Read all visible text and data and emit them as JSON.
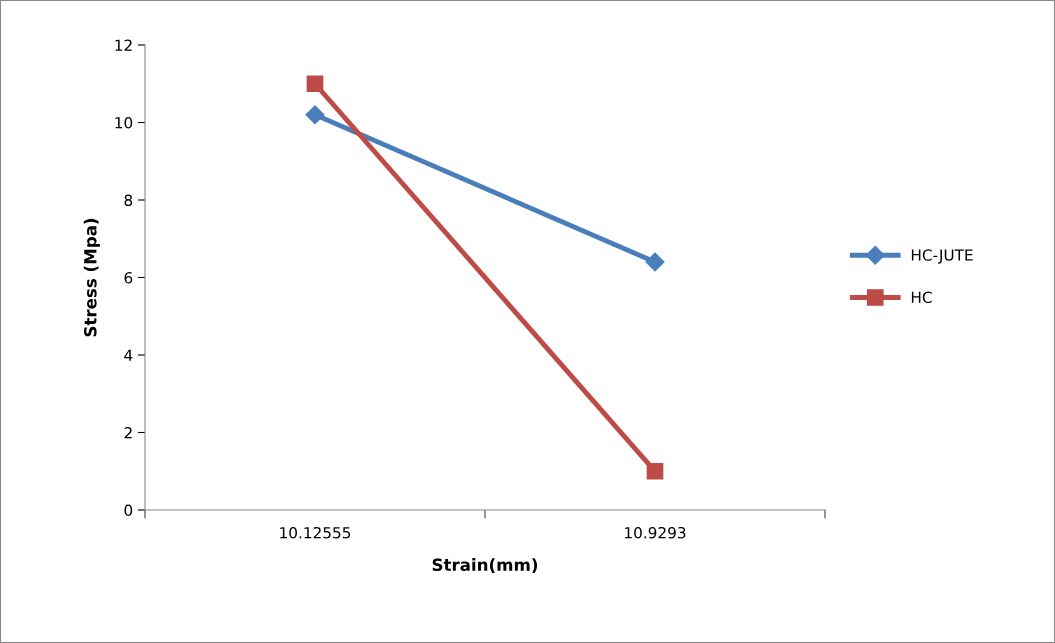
{
  "chart_data": {
    "type": "line",
    "xlabel": "Strain(mm)",
    "ylabel": "Stress (Mpa)",
    "categories": [
      "10.12555",
      "10.9293"
    ],
    "series": [
      {
        "name": "HC-JUTE",
        "color": "#4a7ebb",
        "values": [
          10.2,
          6.4
        ],
        "marker": "diamond"
      },
      {
        "name": "HC",
        "color": "#be4b48",
        "values": [
          11.0,
          1.0
        ],
        "marker": "square"
      }
    ],
    "ylim": [
      0,
      12
    ],
    "yticks": [
      0,
      2,
      4,
      6,
      8,
      10,
      12
    ],
    "grid": false,
    "legend": "right",
    "line_style": "solid"
  }
}
